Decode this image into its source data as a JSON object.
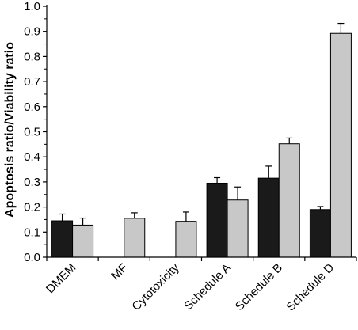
{
  "chart_data": {
    "type": "bar",
    "title": "",
    "xlabel": "",
    "ylabel": "Apoptosis ratio/Viability ratio",
    "ylim": [
      0,
      1.0
    ],
    "yticks": [
      "0.0",
      "0.1",
      "0.2",
      "0.3",
      "0.4",
      "0.5",
      "0.6",
      "0.7",
      "0.8",
      "0.9",
      "1.0"
    ],
    "categories": [
      "DMEM",
      "MF",
      "Cytotoxicity",
      "Schedule A",
      "Schedule B",
      "Schedule D"
    ],
    "grid": false,
    "legend": "none",
    "series": [
      {
        "color": "#1a1a1a",
        "values": [
          0.145,
          null,
          null,
          0.295,
          0.315,
          0.19
        ],
        "errors": [
          0.027,
          null,
          null,
          0.022,
          0.048,
          0.012
        ]
      },
      {
        "color": "#c8c8c8",
        "values": [
          0.128,
          0.155,
          0.143,
          0.228,
          0.452,
          0.892
        ],
        "errors": [
          0.028,
          0.022,
          0.037,
          0.052,
          0.023,
          0.04
        ]
      }
    ]
  }
}
